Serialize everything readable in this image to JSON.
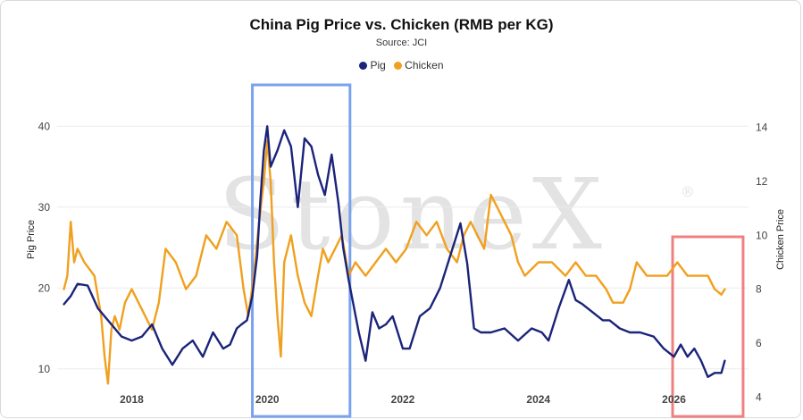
{
  "chart_data": {
    "type": "line",
    "title": "China Pig Price vs. Chicken (RMB per KG)",
    "subtitle": "Source: JCI",
    "ylabel_left": "Pig Price",
    "ylabel_right": "Chicken Price",
    "x_ticks": [
      "2018",
      "2020",
      "2022",
      "2024",
      "2026"
    ],
    "x_range": [
      2016.9,
      2027.1
    ],
    "ylim_left": [
      5,
      45
    ],
    "ylim_right": [
      3.55,
      15.54
    ],
    "y_ticks_left": [
      10,
      20,
      30,
      40
    ],
    "y_ticks_right": [
      4,
      6,
      8,
      10,
      12,
      14
    ],
    "legend_position": "top-center",
    "grid": true,
    "colors": {
      "Pig": "#1b237a",
      "Chicken": "#f0a01e",
      "highlight_2020": "#7aa3ee",
      "highlight_2026": "#f08080"
    },
    "series": [
      {
        "name": "Pig",
        "axis": "left",
        "x": [
          2017.0,
          2017.1,
          2017.2,
          2017.35,
          2017.5,
          2017.7,
          2017.85,
          2018.0,
          2018.15,
          2018.3,
          2018.45,
          2018.6,
          2018.75,
          2018.9,
          2019.05,
          2019.2,
          2019.35,
          2019.45,
          2019.55,
          2019.62,
          2019.7,
          2019.78,
          2019.85,
          2019.9,
          2019.95,
          2020.0,
          2020.05,
          2020.15,
          2020.25,
          2020.35,
          2020.45,
          2020.55,
          2020.65,
          2020.75,
          2020.85,
          2020.95,
          2021.05,
          2021.12,
          2021.2,
          2021.35,
          2021.45,
          2021.55,
          2021.65,
          2021.75,
          2021.85,
          2022.0,
          2022.1,
          2022.25,
          2022.4,
          2022.55,
          2022.7,
          2022.85,
          2022.95,
          2023.05,
          2023.15,
          2023.3,
          2023.5,
          2023.7,
          2023.9,
          2024.05,
          2024.15,
          2024.3,
          2024.45,
          2024.55,
          2024.65,
          2024.8,
          2024.95,
          2025.05,
          2025.2,
          2025.35,
          2025.5,
          2025.7,
          2025.85,
          2026.0,
          2026.1,
          2026.2,
          2026.3,
          2026.4,
          2026.5,
          2026.6,
          2026.7,
          2026.75
        ],
        "values": [
          18,
          19,
          20.5,
          20.3,
          17.5,
          15.5,
          14,
          13.5,
          14,
          15.5,
          12.5,
          10.5,
          12.5,
          13.5,
          11.5,
          14.5,
          12.5,
          13,
          15,
          15.5,
          16,
          19,
          24,
          31,
          37,
          40,
          35,
          37,
          39.5,
          37.5,
          30,
          38.5,
          37.5,
          34,
          31.5,
          36.5,
          30.5,
          25,
          21,
          14.5,
          11,
          17,
          15,
          15.5,
          16.5,
          12.5,
          12.5,
          16.5,
          17.5,
          20,
          24,
          28,
          23,
          15,
          14.5,
          14.5,
          15,
          13.5,
          15,
          14.5,
          13.5,
          17.5,
          21,
          18.5,
          18,
          17,
          16,
          16,
          15,
          14.5,
          14.5,
          14,
          12.5,
          11.5,
          13,
          11.5,
          12.5,
          11,
          9,
          9.5,
          9.5,
          11
        ]
      },
      {
        "name": "Chicken",
        "axis": "right",
        "x": [
          2017.0,
          2017.05,
          2017.1,
          2017.15,
          2017.2,
          2017.3,
          2017.45,
          2017.55,
          2017.6,
          2017.65,
          2017.7,
          2017.75,
          2017.82,
          2017.9,
          2018.0,
          2018.1,
          2018.2,
          2018.3,
          2018.4,
          2018.5,
          2018.65,
          2018.8,
          2018.95,
          2019.1,
          2019.25,
          2019.4,
          2019.55,
          2019.65,
          2019.72,
          2019.8,
          2019.88,
          2019.95,
          2020.0,
          2020.05,
          2020.1,
          2020.15,
          2020.2,
          2020.25,
          2020.35,
          2020.45,
          2020.55,
          2020.65,
          2020.75,
          2020.82,
          2020.9,
          2021.0,
          2021.1,
          2021.2,
          2021.3,
          2021.45,
          2021.6,
          2021.75,
          2021.9,
          2022.05,
          2022.2,
          2022.35,
          2022.5,
          2022.65,
          2022.8,
          2022.9,
          2023.0,
          2023.1,
          2023.2,
          2023.3,
          2023.4,
          2023.5,
          2023.6,
          2023.7,
          2023.8,
          2024.0,
          2024.2,
          2024.4,
          2024.55,
          2024.7,
          2024.85,
          2025.0,
          2025.1,
          2025.25,
          2025.35,
          2025.45,
          2025.6,
          2025.75,
          2025.9,
          2026.05,
          2026.2,
          2026.35,
          2026.5,
          2026.6,
          2026.7,
          2026.75
        ],
        "values": [
          8,
          8.5,
          10.5,
          9,
          9.5,
          9,
          8.5,
          7,
          5.5,
          4.5,
          6.5,
          7,
          6.5,
          7.5,
          8,
          7.5,
          7,
          6.5,
          7.5,
          9.5,
          9,
          8,
          8.5,
          10,
          9.5,
          10.5,
          10,
          8,
          7,
          8.5,
          10.5,
          12,
          13.5,
          12,
          9,
          7,
          5.5,
          9,
          10,
          8.5,
          7.5,
          7,
          8.5,
          9.5,
          9,
          9.5,
          10,
          8.5,
          9,
          8.5,
          9,
          9.5,
          9,
          9.5,
          10.5,
          10,
          10.5,
          9.5,
          9,
          10,
          10.5,
          10,
          9.5,
          11.5,
          11,
          10.5,
          10,
          9,
          8.5,
          9,
          9,
          8.5,
          9,
          8.5,
          8.5,
          8,
          7.5,
          7.5,
          8,
          9,
          8.5,
          8.5,
          8.5,
          9,
          8.5,
          8.5,
          8.5,
          8,
          7.8,
          8
        ]
      }
    ],
    "highlights": [
      {
        "from": 2019.78,
        "to": 2021.22,
        "color": "blue"
      },
      {
        "from": 2025.98,
        "to": 2027.02,
        "color": "red"
      }
    ]
  }
}
